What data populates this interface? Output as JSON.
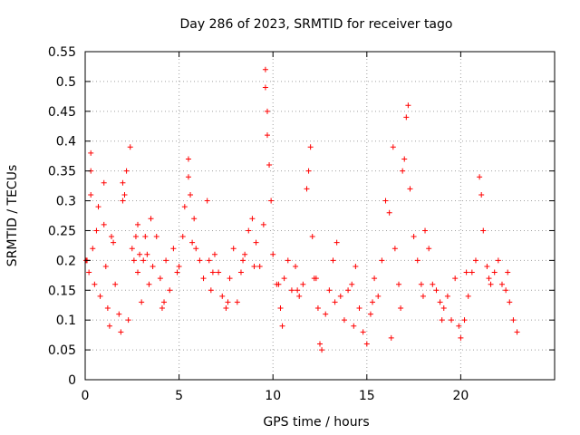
{
  "chart_data": {
    "type": "scatter",
    "title": "Day 286 of 2023, SRMTID for receiver tago",
    "xlabel": "GPS time / hours",
    "ylabel": "SRMTID / TECUs",
    "xlim": [
      0,
      25
    ],
    "ylim": [
      0,
      0.55
    ],
    "xticks": [
      0,
      5,
      10,
      15,
      20
    ],
    "xtick_labels": [
      "0",
      "5",
      "10",
      "15",
      "20"
    ],
    "yticks": [
      0,
      0.05,
      0.1,
      0.15,
      0.2,
      0.25,
      0.3,
      0.35,
      0.4,
      0.45,
      0.5,
      0.55
    ],
    "ytick_labels": [
      "0",
      "0.05",
      "0.1",
      "0.15",
      "0.2",
      "0.25",
      "0.3",
      "0.35",
      "0.4",
      "0.45",
      "0.5",
      "0.55"
    ],
    "grid": true,
    "marker": "+",
    "marker_color": "#ff0000",
    "series": [
      {
        "name": "SRMTID",
        "x": [
          0.1,
          0.2,
          0.3,
          0.3,
          0.3,
          0.4,
          0.5,
          0.6,
          0.8,
          1.0,
          1.0,
          1.1,
          1.2,
          1.3,
          1.5,
          1.6,
          1.8,
          1.9,
          2.0,
          2.0,
          2.1,
          2.2,
          2.4,
          2.5,
          2.6,
          2.7,
          2.8,
          2.8,
          2.9,
          3.0,
          3.1,
          3.2,
          3.3,
          3.4,
          3.6,
          3.8,
          4.0,
          4.1,
          4.3,
          4.5,
          4.7,
          4.9,
          5.0,
          5.2,
          5.3,
          5.5,
          5.5,
          5.6,
          5.7,
          5.9,
          6.1,
          6.3,
          6.5,
          6.6,
          6.7,
          6.9,
          7.1,
          7.3,
          7.5,
          7.7,
          7.9,
          8.1,
          8.3,
          8.5,
          8.7,
          8.9,
          9.1,
          9.3,
          9.5,
          9.6,
          9.6,
          9.7,
          9.7,
          9.8,
          9.9,
          10.0,
          10.2,
          10.4,
          10.5,
          10.6,
          10.8,
          11.0,
          11.2,
          11.4,
          11.6,
          11.8,
          11.9,
          12.0,
          12.1,
          12.2,
          12.4,
          12.5,
          12.6,
          12.8,
          13.0,
          13.2,
          13.4,
          13.6,
          13.8,
          14.0,
          14.2,
          14.4,
          14.6,
          14.8,
          15.0,
          15.2,
          15.4,
          15.6,
          15.8,
          16.0,
          16.2,
          16.4,
          16.5,
          16.7,
          16.8,
          16.9,
          17.0,
          17.1,
          17.2,
          17.3,
          17.5,
          17.7,
          17.9,
          18.1,
          18.3,
          18.5,
          18.7,
          18.9,
          19.1,
          19.3,
          19.5,
          19.7,
          19.9,
          20.0,
          20.2,
          20.4,
          20.6,
          20.8,
          21.0,
          21.1,
          21.2,
          21.4,
          21.6,
          21.8,
          22.0,
          22.2,
          22.4,
          22.6,
          22.8,
          23.0,
          0.05,
          0.7,
          1.4,
          2.3,
          3.5,
          4.2,
          5.8,
          6.8,
          7.6,
          8.4,
          9.0,
          10.3,
          11.3,
          12.3,
          13.3,
          14.3,
          15.3,
          16.3,
          18.0,
          19.0,
          20.3,
          21.5,
          22.5
        ],
        "y": [
          0.2,
          0.18,
          0.35,
          0.38,
          0.31,
          0.22,
          0.16,
          0.25,
          0.14,
          0.33,
          0.26,
          0.19,
          0.12,
          0.09,
          0.23,
          0.16,
          0.11,
          0.08,
          0.33,
          0.3,
          0.31,
          0.35,
          0.39,
          0.22,
          0.2,
          0.24,
          0.18,
          0.26,
          0.21,
          0.13,
          0.2,
          0.24,
          0.21,
          0.16,
          0.19,
          0.24,
          0.17,
          0.12,
          0.2,
          0.15,
          0.22,
          0.18,
          0.19,
          0.24,
          0.29,
          0.37,
          0.34,
          0.31,
          0.23,
          0.22,
          0.2,
          0.17,
          0.3,
          0.2,
          0.15,
          0.21,
          0.18,
          0.14,
          0.12,
          0.17,
          0.22,
          0.13,
          0.18,
          0.21,
          0.25,
          0.27,
          0.23,
          0.19,
          0.26,
          0.52,
          0.49,
          0.45,
          0.41,
          0.36,
          0.3,
          0.21,
          0.16,
          0.12,
          0.09,
          0.17,
          0.2,
          0.15,
          0.19,
          0.14,
          0.16,
          0.32,
          0.35,
          0.39,
          0.24,
          0.17,
          0.12,
          0.06,
          0.05,
          0.11,
          0.15,
          0.2,
          0.23,
          0.14,
          0.1,
          0.15,
          0.16,
          0.19,
          0.12,
          0.08,
          0.06,
          0.11,
          0.17,
          0.14,
          0.2,
          0.3,
          0.28,
          0.39,
          0.22,
          0.16,
          0.12,
          0.35,
          0.37,
          0.44,
          0.46,
          0.32,
          0.24,
          0.2,
          0.16,
          0.25,
          0.22,
          0.16,
          0.15,
          0.13,
          0.12,
          0.14,
          0.1,
          0.17,
          0.09,
          0.07,
          0.1,
          0.14,
          0.18,
          0.2,
          0.34,
          0.31,
          0.25,
          0.19,
          0.16,
          0.18,
          0.2,
          0.16,
          0.15,
          0.13,
          0.1,
          0.08,
          0.2,
          0.29,
          0.24,
          0.1,
          0.27,
          0.13,
          0.27,
          0.18,
          0.13,
          0.2,
          0.19,
          0.16,
          0.15,
          0.17,
          0.13,
          0.09,
          0.13,
          0.07,
          0.14,
          0.1,
          0.18,
          0.17,
          0.18
        ]
      }
    ]
  }
}
